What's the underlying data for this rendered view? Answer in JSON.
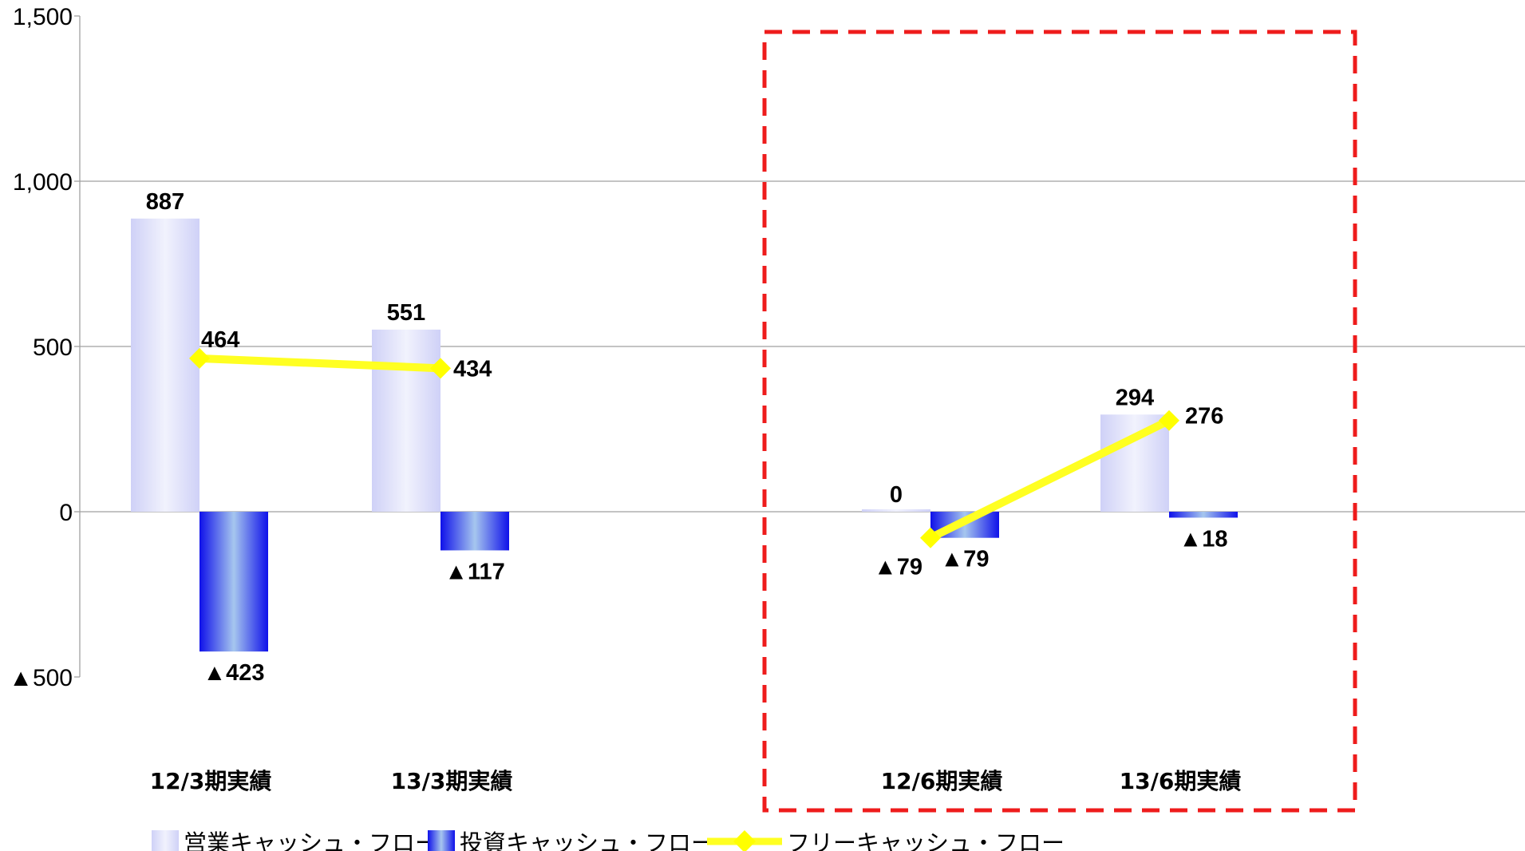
{
  "chart_data": {
    "type": "bar",
    "categories": [
      "12/3期実績",
      "13/3期実績",
      "12/6期実績",
      "13/6期実績"
    ],
    "series": [
      {
        "name": "営業キャッシュ・フロー",
        "kind": "bar",
        "values": [
          887,
          551,
          0,
          294
        ],
        "labels": [
          "887",
          "551",
          "0",
          "294"
        ]
      },
      {
        "name": "投資キャッシュ・フロー",
        "kind": "bar",
        "values": [
          -423,
          -117,
          -79,
          -18
        ],
        "labels": [
          "▲423",
          "▲117",
          "▲79",
          "▲18"
        ]
      },
      {
        "name": "フリーキャッシュ・フロー",
        "kind": "line",
        "segments": [
          [
            0,
            1
          ],
          [
            2,
            3
          ]
        ],
        "values": [
          464,
          434,
          -79,
          276
        ],
        "labels": [
          "464",
          "434",
          "▲79",
          "276"
        ]
      }
    ],
    "ylim": [
      -500,
      1500
    ],
    "yticks": [
      {
        "value": 1500,
        "label": "1,500"
      },
      {
        "value": 1000,
        "label": "1,000"
      },
      {
        "value": 500,
        "label": "500"
      },
      {
        "value": 0,
        "label": "0"
      },
      {
        "value": -500,
        "label": "▲500"
      }
    ],
    "grid": true,
    "highlight": {
      "categories": [
        "12/6期実績",
        "13/6期実績"
      ],
      "style": "dashed",
      "color": "#ee1c1c"
    },
    "legend_position": "bottom",
    "colors": {
      "operating": "#d0d2f8",
      "investing": "#1818ee",
      "free": "#ffff22",
      "marker": "#ffff00",
      "grid": "#a0a0a0",
      "highlight": "#ee1c1c"
    }
  }
}
